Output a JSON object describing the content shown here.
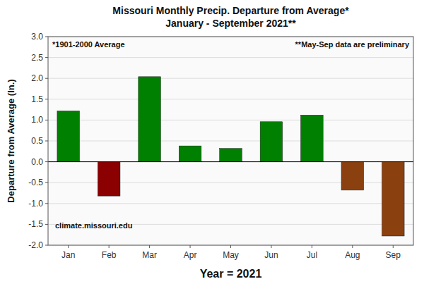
{
  "chart_data": {
    "type": "bar",
    "title": "Missouri Monthly Precip. Departure from Average*",
    "subtitle": "January - September 2021**",
    "x_label": "Year = 2021",
    "y_label": "Departure from Average (In.)",
    "categories": [
      "Jan",
      "Feb",
      "Mar",
      "Apr",
      "May",
      "Jun",
      "Jul",
      "Aug",
      "Sep"
    ],
    "values": [
      1.22,
      -0.82,
      2.04,
      0.38,
      0.32,
      0.96,
      1.12,
      -0.68,
      -1.78
    ],
    "colors": [
      "#008000",
      "#8B0000",
      "#008000",
      "#008000",
      "#008000",
      "#008000",
      "#008000",
      "#8B4010",
      "#8B4010"
    ],
    "ylim": [
      -2.0,
      3.0
    ],
    "yticks": [
      {
        "value": -2.0,
        "label": "-2.0"
      },
      -1.5,
      {
        "value": -1.0,
        "label": "-1.0"
      },
      -0.5,
      {
        "value": 0.0,
        "label": "0.0"
      },
      0.5,
      {
        "value": 1.0,
        "label": "1.0"
      },
      1.5,
      {
        "value": 2.0,
        "label": "2.0"
      },
      2.5,
      {
        "value": 3.0,
        "label": "3.0"
      }
    ],
    "annotations": [
      "*1901-2000 Average",
      "**May-Sep data are preliminary",
      "climate.missouri.edu"
    ],
    "grid": true
  }
}
